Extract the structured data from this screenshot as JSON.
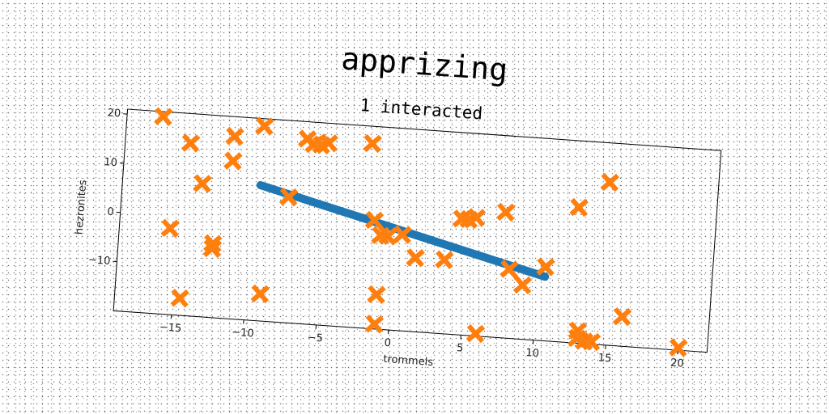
{
  "chart_data": {
    "type": "scatter",
    "title": "apprizing",
    "subtitle": "1 interacted",
    "xlabel": "trommels",
    "ylabel": "hezronites",
    "xlim": [
      -19,
      22
    ],
    "ylim": [
      -20,
      21
    ],
    "xticks": [
      -15,
      -10,
      -5,
      0,
      5,
      10,
      15,
      20
    ],
    "yticks": [
      -10,
      0,
      10,
      20
    ],
    "grid": false,
    "colors": {
      "line": "#1f77b4",
      "markers": "#ff7f0e"
    },
    "series": [
      {
        "marker": "line",
        "x": [
          -9.5,
          10.5
        ],
        "y": [
          7.5,
          -7.0
        ]
      },
      {
        "marker": "x",
        "x": [
          -16.5,
          -14.5,
          -13.5,
          -11.5,
          -11.5,
          -9.5,
          -6.5,
          -6.0,
          -5.5,
          -5.0,
          -2.0,
          -15.5,
          -12.5,
          -12.5,
          -14.5,
          -9.0,
          -7.5,
          -1.5,
          -1.0,
          -0.5,
          0.5,
          1.5,
          3.5,
          4.5,
          5.0,
          5.5,
          7.5,
          8.0,
          9.0,
          10.5,
          12.5,
          14.5,
          16.0,
          20.0,
          -1.0,
          -1.0,
          6.0,
          13.0,
          13.5,
          14.0,
          13.0
        ],
        "y": [
          20.0,
          15.0,
          7.0,
          17.0,
          12.0,
          19.5,
          17.5,
          16.5,
          16.5,
          17.0,
          17.5,
          -2.5,
          -5.0,
          -6.0,
          -16.5,
          -14.5,
          5.5,
          2.0,
          -1.0,
          -1.0,
          -0.5,
          -5.0,
          -5.0,
          3.5,
          3.5,
          4.0,
          5.5,
          -6.0,
          -9.0,
          -5.0,
          7.5,
          13.0,
          -14.0,
          -19.5,
          -13.0,
          -19.0,
          -19.5,
          -17.5,
          -19.5,
          -19.5,
          -19.0
        ]
      }
    ]
  }
}
